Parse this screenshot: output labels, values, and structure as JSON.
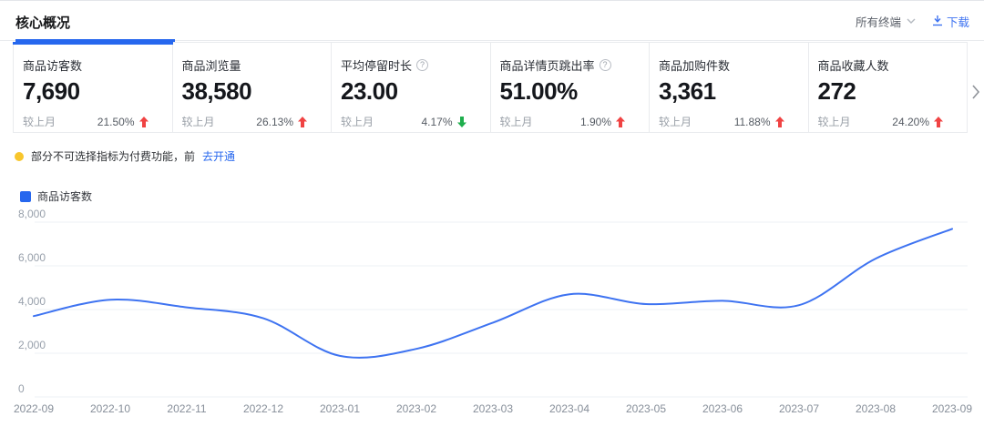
{
  "header": {
    "tab": "核心概况",
    "terminal_filter": "所有终端",
    "download_label": "下载"
  },
  "kpi_cards": [
    {
      "label": "商品访客数",
      "value": "7,690",
      "compare_label": "较上月",
      "change": "21.50%",
      "direction": "up",
      "has_info": false,
      "selected": true
    },
    {
      "label": "商品浏览量",
      "value": "38,580",
      "compare_label": "较上月",
      "change": "26.13%",
      "direction": "up",
      "has_info": false,
      "selected": false
    },
    {
      "label": "平均停留时长",
      "value": "23.00",
      "compare_label": "较上月",
      "change": "4.17%",
      "direction": "down",
      "has_info": true,
      "selected": false
    },
    {
      "label": "商品详情页跳出率",
      "value": "51.00%",
      "compare_label": "较上月",
      "change": "1.90%",
      "direction": "up",
      "has_info": true,
      "selected": false
    },
    {
      "label": "商品加购件数",
      "value": "3,361",
      "compare_label": "较上月",
      "change": "11.88%",
      "direction": "up",
      "has_info": false,
      "selected": false
    },
    {
      "label": "商品收藏人数",
      "value": "272",
      "compare_label": "较上月",
      "change": "24.20%",
      "direction": "up",
      "has_info": false,
      "selected": false
    }
  ],
  "notice": {
    "text": "部分不可选择指标为付费功能，前",
    "link": "去开通"
  },
  "legend": {
    "label": "商品访客数"
  },
  "icons": {
    "info_glyph": "?"
  },
  "chart_data": {
    "type": "line",
    "title": "商品访客数",
    "x": [
      "2022-09",
      "2022-10",
      "2022-11",
      "2022-12",
      "2023-01",
      "2023-02",
      "2023-03",
      "2023-04",
      "2023-05",
      "2023-06",
      "2023-07",
      "2023-08",
      "2023-09"
    ],
    "series": [
      {
        "name": "商品访客数",
        "values": [
          3700,
          4450,
          4100,
          3600,
          1880,
          2200,
          3400,
          4700,
          4250,
          4400,
          4200,
          6329,
          7690
        ]
      }
    ],
    "ylim": [
      0,
      8000
    ],
    "yticks": [
      0,
      2000,
      4000,
      6000,
      8000
    ],
    "grid": true,
    "smooth": true,
    "legend_position": "top-left",
    "line_color": "#3e73f1"
  },
  "colors": {
    "accent_blue": "#2667ee",
    "line_blue": "#3e73f1",
    "up_red": "#f04343",
    "down_green": "#1fae4d",
    "notice_yellow": "#f8c62c"
  }
}
